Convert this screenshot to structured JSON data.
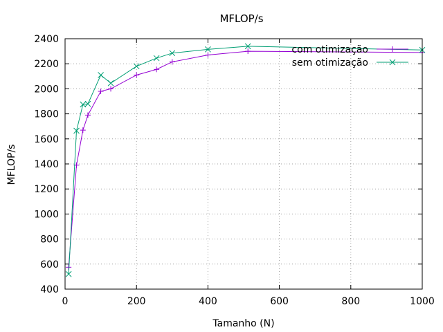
{
  "chart_data": {
    "type": "line",
    "title": "MFLOP/s",
    "xlabel": "Tamanho (N)",
    "ylabel": "MFLOP/s",
    "xlim": [
      0,
      1000
    ],
    "ylim": [
      400,
      2400
    ],
    "xticks": [
      0,
      200,
      400,
      600,
      800,
      1000
    ],
    "yticks": [
      400,
      600,
      800,
      1000,
      1200,
      1400,
      1600,
      1800,
      2000,
      2200,
      2400
    ],
    "grid": true,
    "legend_position": "top-right",
    "series": [
      {
        "name": "com otimização",
        "color": "#9400d3",
        "marker": "plus",
        "x": [
          10,
          32,
          50,
          64,
          100,
          128,
          200,
          256,
          300,
          400,
          512,
          1000
        ],
        "y": [
          575,
          1390,
          1670,
          1790,
          1980,
          2000,
          2110,
          2155,
          2215,
          2270,
          2300,
          2290
        ]
      },
      {
        "name": "sem otimização",
        "color": "#009e73",
        "marker": "cross",
        "x": [
          10,
          32,
          50,
          64,
          100,
          128,
          200,
          256,
          300,
          400,
          512,
          1000
        ],
        "y": [
          520,
          1665,
          1875,
          1880,
          2110,
          2045,
          2180,
          2245,
          2285,
          2315,
          2340,
          2310
        ]
      }
    ]
  }
}
